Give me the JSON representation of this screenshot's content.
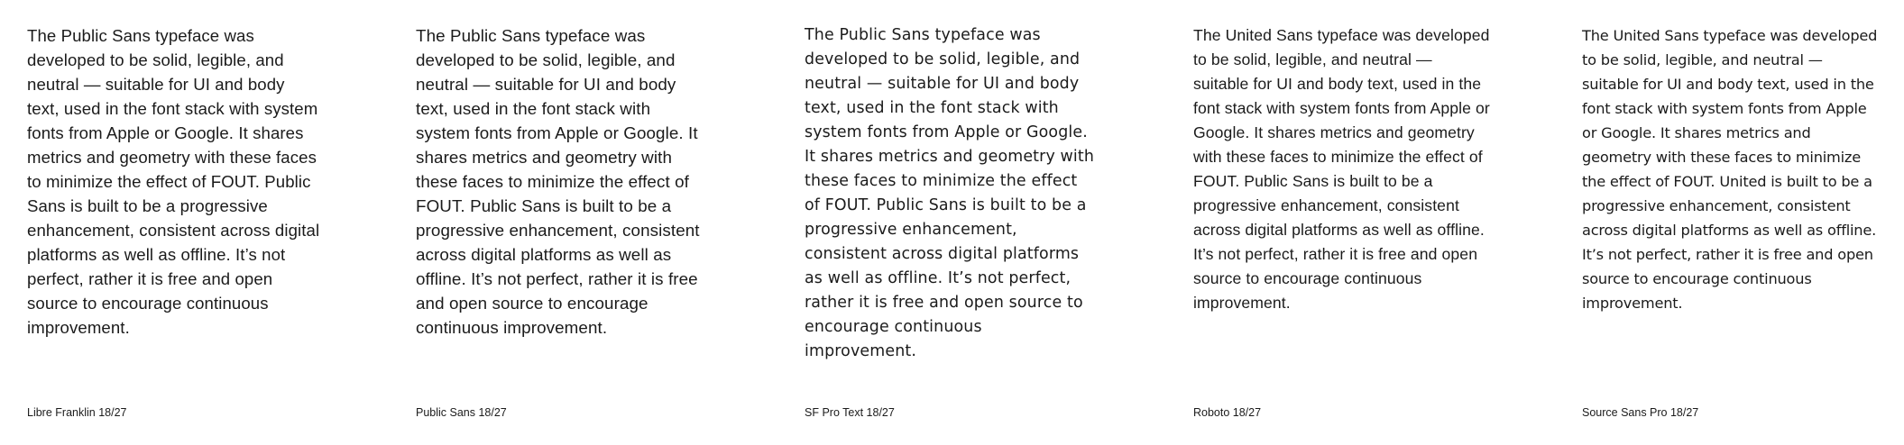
{
  "specimens": [
    {
      "text": "The Public Sans typeface was developed to be solid, legible, and neutral — suitable for UI and body text, used in the font stack with system fonts from Apple or Google. It shares metrics and geometry with these faces to minimize the effect of FOUT. Public Sans is built to be a progressive enhancement, consistent across digital platforms as well as offline. It’s not perfect, rather it is free and open source to encourage continuous improvement.",
      "caption": "Libre Franklin 18/27"
    },
    {
      "text": "The Public Sans typeface was developed to be solid, legible, and neutral — suitable for UI and body text, used in the font stack with system fonts from Apple or Google. It shares metrics and geometry with these faces to minimize the effect of FOUT. Public Sans is built to be a progressive enhancement, consistent across digital platforms as well as offline. It’s not perfect, rather it is free and open source to encourage continuous improvement.",
      "caption": "Public Sans 18/27"
    },
    {
      "text": "The Public Sans typeface was developed to be solid, legible, and neutral — suitable for UI and body text, used in the font stack with system fonts from Apple or Google. It shares metrics and geometry with these faces to minimize the effect of FOUT. Public Sans is built to be a progressive enhancement, consistent across digital platforms as well as offline. It’s not perfect, rather it is free and open source to encourage continuous improvement.",
      "caption": "SF Pro Text 18/27"
    },
    {
      "text": "The United Sans typeface was developed to be solid, legible, and neutral — suitable for UI and body text, used in the font stack with system fonts from Apple or Google. It shares metrics and geometry with these faces to minimize the effect of FOUT. Public Sans is built to be a progressive enhancement, consistent across digital platforms as well as offline. It’s not perfect, rather it is free and open source to encourage continuous improvement.",
      "caption": "Roboto 18/27"
    },
    {
      "text": "The United Sans typeface was developed to be solid, legible, and neutral — suitable for UI and body text, used in the font stack with system fonts from Apple or Google. It shares metrics and geometry with these faces to minimize the effect of FOUT. United is built to be a progressive enhancement, consistent across digital platforms as well as offline. It’s not perfect, rather it is free and open source to encourage continuous improvement.",
      "caption": "Source Sans Pro 18/27"
    }
  ]
}
